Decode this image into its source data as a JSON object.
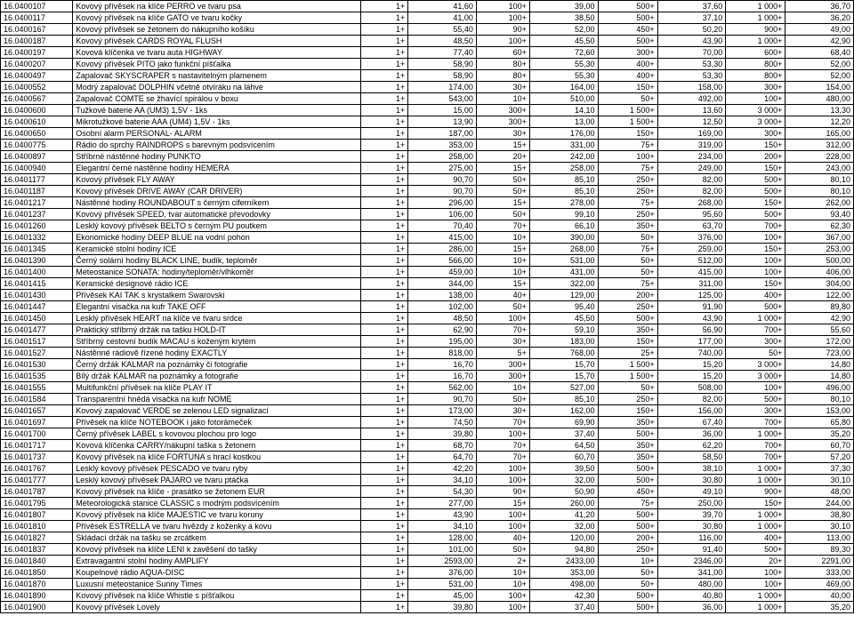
{
  "rows": [
    [
      "16.0400107",
      "Kovový přívěsek na klíče PERRO ve tvaru psa",
      "1+",
      "41,60",
      "100+",
      "39,00",
      "500+",
      "37,60",
      "1 000+",
      "36,70"
    ],
    [
      "16.0400117",
      "Kovový přívěsek na klíče GATO ve tvaru kočky",
      "1+",
      "41,00",
      "100+",
      "38,50",
      "500+",
      "37,10",
      "1 000+",
      "36,20"
    ],
    [
      "16.0400167",
      "Kovový přívěsek se žetonem do nákupního košíku",
      "1+",
      "55,40",
      "90+",
      "52,00",
      "450+",
      "50,20",
      "900+",
      "49,00"
    ],
    [
      "16.0400187",
      "Kovový přívěsek CARDS ROYAL FLUSH",
      "1+",
      "48,50",
      "100+",
      "45,50",
      "500+",
      "43,90",
      "1 000+",
      "42,90"
    ],
    [
      "16.0400197",
      "Kovová klíčenka ve tvaru auta HIGHWAY",
      "1+",
      "77,40",
      "60+",
      "72,60",
      "300+",
      "70,00",
      "600+",
      "68,40"
    ],
    [
      "16.0400207",
      "Kovový přívěsek PITO jako funkční píšťalka",
      "1+",
      "58,90",
      "80+",
      "55,30",
      "400+",
      "53,30",
      "800+",
      "52,00"
    ],
    [
      "16.0400497",
      "Zapalovač SKYSCRAPER s nastavitelným plamenem",
      "1+",
      "58,90",
      "80+",
      "55,30",
      "400+",
      "53,30",
      "800+",
      "52,00"
    ],
    [
      "16.0400552",
      "Modrý zapalovač DOLPHIN včetně otvíráku na láhve",
      "1+",
      "174,00",
      "30+",
      "164,00",
      "150+",
      "158,00",
      "300+",
      "154,00"
    ],
    [
      "16.0400567",
      "Zapalovač COMTE se žhavící spirálou v boxu",
      "1+",
      "543,00",
      "10+",
      "510,00",
      "50+",
      "492,00",
      "100+",
      "480,00"
    ],
    [
      "16.0400600",
      "Tužkové baterie AA (UM3) 1,5V - 1ks",
      "1+",
      "15,00",
      "300+",
      "14,10",
      "1 500+",
      "13,60",
      "3 000+",
      "13,30"
    ],
    [
      "16.0400610",
      "Mikrotužkové baterie AAA (UM4) 1,5V - 1ks",
      "1+",
      "13,90",
      "300+",
      "13,00",
      "1 500+",
      "12,50",
      "3 000+",
      "12,20"
    ],
    [
      "16.0400650",
      "Osobní alarm PERSONAL- ALARM",
      "1+",
      "187,00",
      "30+",
      "176,00",
      "150+",
      "169,00",
      "300+",
      "165,00"
    ],
    [
      "16.0400775",
      "Rádio do sprchy RAINDROPS  s barevným podsvícením",
      "1+",
      "353,00",
      "15+",
      "331,00",
      "75+",
      "319,00",
      "150+",
      "312,00"
    ],
    [
      "16.0400897",
      "Stříbrné nástěnné hodiny PUNKTO",
      "1+",
      "258,00",
      "20+",
      "242,00",
      "100+",
      "234,00",
      "200+",
      "228,00"
    ],
    [
      "16.0400940",
      "Elegantní černé nástěnné hodiny HEMERA",
      "1+",
      "275,00",
      "15+",
      "258,00",
      "75+",
      "249,00",
      "150+",
      "243,00"
    ],
    [
      "16.0401177",
      "Kovový přívěsek FLY AWAY",
      "1+",
      "90,70",
      "50+",
      "85,10",
      "250+",
      "82,00",
      "500+",
      "80,10"
    ],
    [
      "16.0401187",
      "Kovový přívěsek DRIVE AWAY (CAR DRIVER)",
      "1+",
      "90,70",
      "50+",
      "85,10",
      "250+",
      "82,00",
      "500+",
      "80,10"
    ],
    [
      "16.0401217",
      "Nástěnné hodiny ROUNDABOUT s černým ciferníkem",
      "1+",
      "296,00",
      "15+",
      "278,00",
      "75+",
      "268,00",
      "150+",
      "262,00"
    ],
    [
      "16.0401237",
      "Kovový přívěsek SPEED, tvar automatické převodovky",
      "1+",
      "106,00",
      "50+",
      "99,10",
      "250+",
      "95,60",
      "500+",
      "93,40"
    ],
    [
      "16.0401260",
      "Lesklý kovový přívěsek BELTO s černým PU poutkem",
      "1+",
      "70,40",
      "70+",
      "66,10",
      "350+",
      "63,70",
      "700+",
      "62,30"
    ],
    [
      "16.0401332",
      "Ekonomické hodiny DEEP BLUE na vodní pohon",
      "1+",
      "415,00",
      "10+",
      "390,00",
      "50+",
      "376,00",
      "100+",
      "367,00"
    ],
    [
      "16.0401345",
      "Keramické stolní hodiny ICE",
      "1+",
      "286,00",
      "15+",
      "268,00",
      "75+",
      "259,00",
      "150+",
      "253,00"
    ],
    [
      "16.0401390",
      "Černý solární hodiny BLACK LINE, budík, teploměr",
      "1+",
      "566,00",
      "10+",
      "531,00",
      "50+",
      "512,00",
      "100+",
      "500,00"
    ],
    [
      "16.0401400",
      "Meteostanice SONATA: hodiny/teploměr/vlhkoměr",
      "1+",
      "459,00",
      "10+",
      "431,00",
      "50+",
      "415,00",
      "100+",
      "406,00"
    ],
    [
      "16.0401415",
      "Keramické designové rádio ICE",
      "1+",
      "344,00",
      "15+",
      "322,00",
      "75+",
      "311,00",
      "150+",
      "304,00"
    ],
    [
      "16.0401430",
      "Přívěsek KAI TAK s krystalkem Swarovski",
      "1+",
      "138,00",
      "40+",
      "129,00",
      "200+",
      "125,00",
      "400+",
      "122,00"
    ],
    [
      "16.0401447",
      "Elegantní visačka na kufr TAKE OFF",
      "1+",
      "102,00",
      "50+",
      "95,40",
      "250+",
      "91,90",
      "500+",
      "89,80"
    ],
    [
      "16.0401450",
      "Lesklý přívěsek HEART na klíče ve tvaru srdce",
      "1+",
      "48,50",
      "100+",
      "45,50",
      "500+",
      "43,90",
      "1 000+",
      "42,90"
    ],
    [
      "16.0401477",
      "Praktický stříbrný držák na tašku HOLD-IT",
      "1+",
      "62,90",
      "70+",
      "59,10",
      "350+",
      "56,90",
      "700+",
      "55,60"
    ],
    [
      "16.0401517",
      "Stříbrný cestovní budík MACAU s koženým krytem",
      "1+",
      "195,00",
      "30+",
      "183,00",
      "150+",
      "177,00",
      "300+",
      "172,00"
    ],
    [
      "16.0401527",
      "Nástěnné rádiově řízené hodiny EXACTLY",
      "1+",
      "818,00",
      "5+",
      "768,00",
      "25+",
      "740,00",
      "50+",
      "723,00"
    ],
    [
      "16.0401530",
      "Černý držák KALMAR na poznámky či fotografie",
      "1+",
      "16,70",
      "300+",
      "15,70",
      "1 500+",
      "15,20",
      "3 000+",
      "14,80"
    ],
    [
      "16.0401535",
      "Bílý držák KALMAR na poznámky a fotografie",
      "1+",
      "16,70",
      "300+",
      "15,70",
      "1 500+",
      "15,20",
      "3 000+",
      "14,80"
    ],
    [
      "16.0401555",
      "Multifunkční přívěsek na klíče PLAY IT",
      "1+",
      "562,00",
      "10+",
      "527,00",
      "50+",
      "508,00",
      "100+",
      "496,00"
    ],
    [
      "16.0401584",
      "Transparentní hnědá visačka na kufr NOME",
      "1+",
      "90,70",
      "50+",
      "85,10",
      "250+",
      "82,00",
      "500+",
      "80,10"
    ],
    [
      "16.0401657",
      "Kovový zapalovač VERDE se zelenou LED signalizací",
      "1+",
      "173,00",
      "30+",
      "162,00",
      "150+",
      "156,00",
      "300+",
      "153,00"
    ],
    [
      "16.0401697",
      "Přívěsek na klíče NOTEBOOK i jako fotorámeček",
      "1+",
      "74,50",
      "70+",
      "69,90",
      "350+",
      "67,40",
      "700+",
      "65,80"
    ],
    [
      "16.0401700",
      "Černý přívěsek LABEL s kovovou plochou pro logo",
      "1+",
      "39,80",
      "100+",
      "37,40",
      "500+",
      "36,00",
      "1 000+",
      "35,20"
    ],
    [
      "16.0401717",
      "Kovová klíčenka CARRY/nákupní taška s žetonem",
      "1+",
      "68,70",
      "70+",
      "64,50",
      "350+",
      "62,20",
      "700+",
      "60,70"
    ],
    [
      "16.0401737",
      "Kovový přívěsek na klíče FORTUNA s hrací kostkou",
      "1+",
      "64,70",
      "70+",
      "60,70",
      "350+",
      "58,50",
      "700+",
      "57,20"
    ],
    [
      "16.0401767",
      "Lesklý kovový přívěsek PESCADO ve tvaru ryby",
      "1+",
      "42,20",
      "100+",
      "39,50",
      "500+",
      "38,10",
      "1 000+",
      "37,30"
    ],
    [
      "16.0401777",
      "Lesklý kovový přívěsek PAJARO ve tvaru ptáčka",
      "1+",
      "34,10",
      "100+",
      "32,00",
      "500+",
      "30,80",
      "1 000+",
      "30,10"
    ],
    [
      "16.0401787",
      "Kovový přívěsek na klíče - prasátko se žetonem EUR",
      "1+",
      "54,30",
      "90+",
      "50,90",
      "450+",
      "49,10",
      "900+",
      "48,00"
    ],
    [
      "16.0401795",
      "Meteorologická stanice CLASSIC s modrým podsvícením",
      "1+",
      "277,00",
      "15+",
      "260,00",
      "75+",
      "250,00",
      "150+",
      "244,00"
    ],
    [
      "16.0401807",
      "Kovový přívěsek na klíče MAJESTIC ve tvaru koruny",
      "1+",
      "43,90",
      "100+",
      "41,20",
      "500+",
      "39,70",
      "1 000+",
      "38,80"
    ],
    [
      "16.0401810",
      "Přívěsek ESTRELLA ve tvaru hvězdy z koženky a kovu",
      "1+",
      "34,10",
      "100+",
      "32,00",
      "500+",
      "30,80",
      "1 000+",
      "30,10"
    ],
    [
      "16.0401827",
      "Skládací držák na tašku se zrcátkem",
      "1+",
      "128,00",
      "40+",
      "120,00",
      "200+",
      "116,00",
      "400+",
      "113,00"
    ],
    [
      "16.0401837",
      "Kovový přívěsek na klíče LENI k zavěšení do tašky",
      "1+",
      "101,00",
      "50+",
      "94,80",
      "250+",
      "91,40",
      "500+",
      "89,30"
    ],
    [
      "16.0401840",
      "Extravagantní stolní hodiny AMPLIFY",
      "1+",
      "2593,00",
      "2+",
      "2433,00",
      "10+",
      "2346,00",
      "20+",
      "2291,00"
    ],
    [
      "16.0401850",
      "Koupelnové rádio AQUA-DISC",
      "1+",
      "376,00",
      "10+",
      "353,00",
      "50+",
      "341,00",
      "100+",
      "333,00"
    ],
    [
      "16.0401870",
      "Luxusní meteostanice Sunny Times",
      "1+",
      "531,00",
      "10+",
      "498,00",
      "50+",
      "480,00",
      "100+",
      "469,00"
    ],
    [
      "16.0401890",
      "Kovový přívěsek na klíče Whistle s píšťalkou",
      "1+",
      "45,00",
      "100+",
      "42,30",
      "500+",
      "40,80",
      "1 000+",
      "40,00"
    ],
    [
      "16.0401900",
      "Kovový přívěsek Lovely",
      "1+",
      "39,80",
      "100+",
      "37,40",
      "500+",
      "36,00",
      "1 000+",
      "35,20"
    ]
  ]
}
